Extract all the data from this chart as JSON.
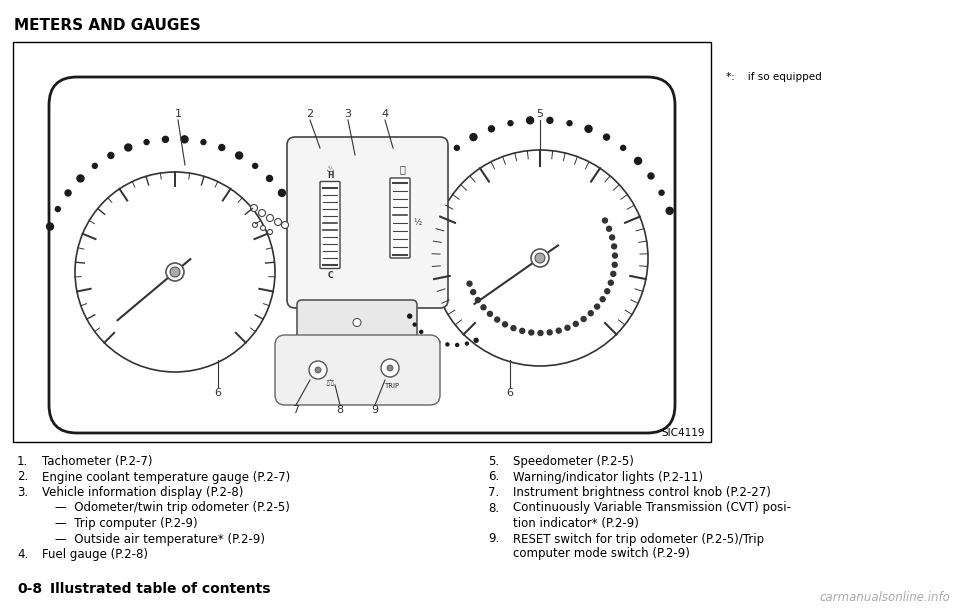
{
  "title": "METERS AND GAUGES",
  "page_label": "0-8",
  "page_label_text": "Illustrated table of contents",
  "footnote": "*:    if so equipped",
  "watermark": "carmanualsonline.info",
  "image_code": "SIC4119",
  "items_left": [
    {
      "num": "1.",
      "text": "Tachometer (P.2-7)"
    },
    {
      "num": "2.",
      "text": "Engine coolant temperature gauge (P.2-7)"
    },
    {
      "num": "3.",
      "text": "Vehicle information display (P.2-8)"
    },
    {
      "num": "",
      "text": "—  Odometer/twin trip odometer (P.2-5)"
    },
    {
      "num": "",
      "text": "—  Trip computer (P.2-9)"
    },
    {
      "num": "",
      "text": "—  Outside air temperature* (P.2-9)"
    },
    {
      "num": "4.",
      "text": "Fuel gauge (P.2-8)"
    }
  ],
  "items_right": [
    {
      "num": "5.",
      "text": "Speedometer (P.2-5)"
    },
    {
      "num": "6.",
      "text": "Warning/indicator lights (P.2-11)"
    },
    {
      "num": "7.",
      "text": "Instrument brightness control knob (P.2-27)"
    },
    {
      "num": "8.",
      "text": "Continuously Variable Transmission (CVT) posi-\ntion indicator* (P.2-9)"
    },
    {
      "num": "9.",
      "text": "RESET switch for trip odometer (P.2-5)/Trip\ncomputer mode switch (P.2-9)"
    }
  ],
  "bg_color": "#ffffff",
  "border_color": "#000000",
  "text_color": "#000000",
  "title_fontsize": 11,
  "body_fontsize": 8.5,
  "small_fontsize": 7.5
}
